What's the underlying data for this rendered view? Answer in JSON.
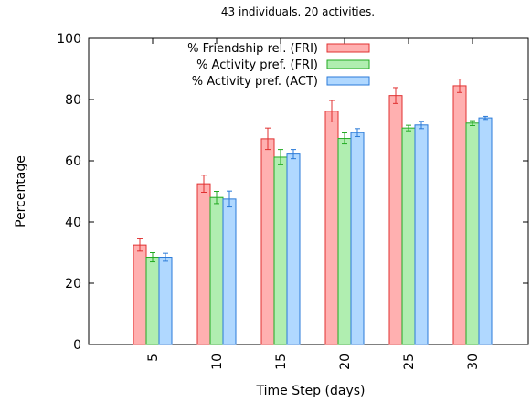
{
  "chart_data": {
    "type": "bar",
    "title": "43 individuals. 20 activities.",
    "xlabel": "Time Step (days)",
    "ylabel": "Percentage",
    "categories": [
      "5",
      "10",
      "15",
      "20",
      "25",
      "30"
    ],
    "ylim": [
      0,
      100
    ],
    "yticks": [
      0,
      20,
      40,
      60,
      80,
      100
    ],
    "grid": false,
    "legend_position": "top-center",
    "error_bars": true,
    "series": [
      {
        "name": "% Friendship rel. (FRI)",
        "values": [
          32.5,
          52.5,
          67.2,
          76.2,
          81.3,
          84.5
        ],
        "errors": [
          2.0,
          2.8,
          3.5,
          3.5,
          2.6,
          2.2
        ],
        "fill": "#ffb0b0",
        "stroke": "#e03030"
      },
      {
        "name": "% Activity pref. (FRI)",
        "values": [
          28.5,
          48.0,
          61.2,
          67.3,
          70.7,
          72.3
        ],
        "errors": [
          1.5,
          2.0,
          2.5,
          1.8,
          0.9,
          0.8
        ],
        "fill": "#b0eeb0",
        "stroke": "#22aa22"
      },
      {
        "name": "% Activity pref. (ACT)",
        "values": [
          28.5,
          47.5,
          62.2,
          69.2,
          71.7,
          74.0
        ],
        "errors": [
          1.3,
          2.6,
          1.5,
          1.3,
          1.2,
          0.5
        ],
        "fill": "#b0d8ff",
        "stroke": "#2a7ad8"
      }
    ]
  }
}
